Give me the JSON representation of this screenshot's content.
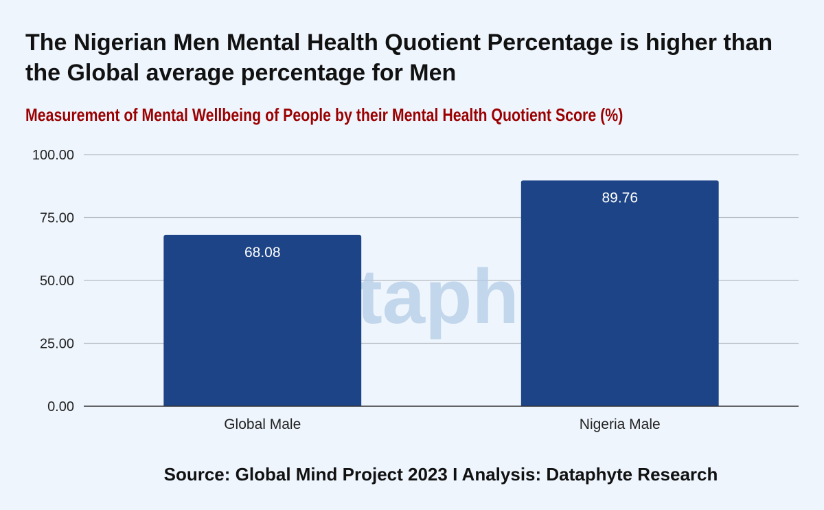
{
  "chart_data": {
    "type": "bar",
    "title": "The Nigerian Men Mental Health Quotient Percentage is higher than the Global average percentage for Men",
    "subtitle": "Measurement of Mental Wellbeing of People by their Mental Health Quotient Score (%)",
    "categories": [
      "Global Male",
      "Nigeria Male"
    ],
    "values": [
      68.08,
      89.76
    ],
    "value_labels": [
      "68.08",
      "89.76"
    ],
    "ylim": [
      0,
      100
    ],
    "yticks": [
      0,
      25,
      50,
      75,
      100
    ],
    "ytick_labels": [
      "0.00",
      "25.00",
      "50.00",
      "75.00",
      "100.00"
    ],
    "xlabel": "",
    "ylabel": "",
    "grid": true,
    "bar_color": "#1d4486",
    "label_color": "#ffffff",
    "watermark": "Dataphyte"
  },
  "source": "Source: Global Mind Project 2023 I Analysis: Dataphyte Research",
  "colors": {
    "background": "#eef5fd",
    "title": "#111111",
    "subtitle": "#9b0000",
    "grid": "#b7bcc2",
    "watermark": "#b3cbe6"
  }
}
